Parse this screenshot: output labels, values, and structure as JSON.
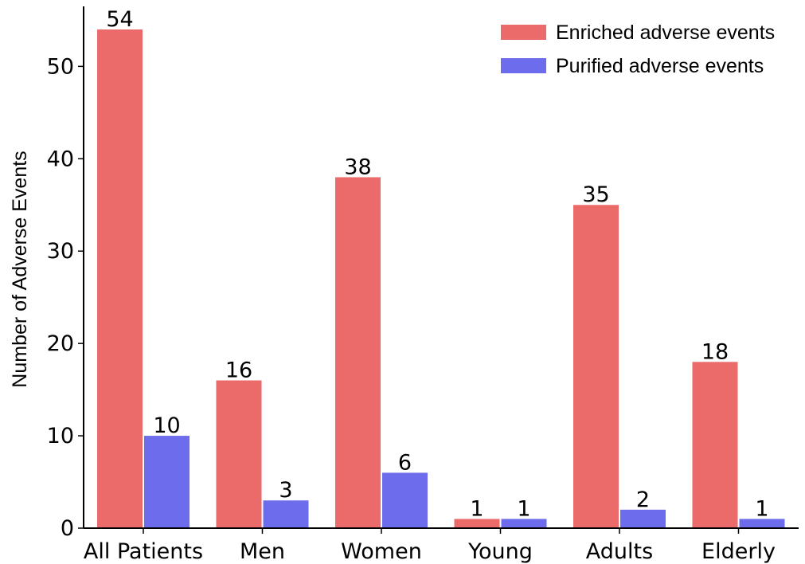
{
  "chart_data": {
    "type": "bar",
    "categories": [
      "All Patients",
      "Men",
      "Women",
      "Young",
      "Adults",
      "Elderly"
    ],
    "series": [
      {
        "name": "Enriched adverse events",
        "color": "#eb6a6a",
        "values": [
          54,
          16,
          38,
          1,
          35,
          18
        ]
      },
      {
        "name": "Purified adverse events",
        "color": "#6c6cec",
        "values": [
          10,
          3,
          6,
          1,
          2,
          1
        ]
      }
    ],
    "title": "",
    "xlabel": "",
    "ylabel": "Number of Adverse Events",
    "ylim": [
      0,
      56.5
    ],
    "yticks": [
      0,
      10,
      20,
      30,
      40,
      50
    ],
    "legend_position": "top-right",
    "grid": false
  }
}
